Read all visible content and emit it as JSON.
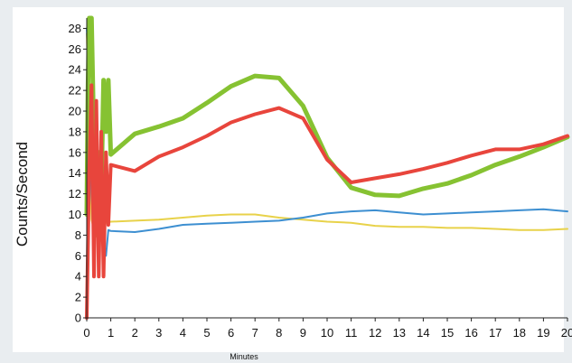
{
  "chart_data": {
    "type": "line",
    "title": "",
    "xlabel": "Minutes",
    "ylabel": "Counts/Second",
    "xlim": [
      0,
      20
    ],
    "ylim": [
      0,
      29
    ],
    "x_ticks": [
      0,
      1,
      2,
      3,
      4,
      5,
      6,
      7,
      8,
      9,
      10,
      11,
      12,
      13,
      14,
      15,
      16,
      17,
      18,
      19,
      20
    ],
    "y_ticks": [
      0,
      2,
      4,
      6,
      8,
      10,
      12,
      14,
      16,
      18,
      20,
      22,
      24,
      26,
      28
    ],
    "grid": false,
    "legend": "none",
    "series": [
      {
        "color": "#e8d24a",
        "points": [
          [
            0,
            27.5
          ],
          [
            0.1,
            20
          ],
          [
            0.2,
            9.5
          ],
          [
            0.3,
            8.5
          ],
          [
            0.5,
            9.0
          ],
          [
            1,
            9.3
          ],
          [
            2,
            9.4
          ],
          [
            3,
            9.5
          ],
          [
            4,
            9.7
          ],
          [
            5,
            9.9
          ],
          [
            6,
            10.0
          ],
          [
            7,
            10.0
          ],
          [
            8,
            9.7
          ],
          [
            9,
            9.5
          ],
          [
            10,
            9.3
          ],
          [
            11,
            9.2
          ],
          [
            12,
            8.9
          ],
          [
            13,
            8.8
          ],
          [
            14,
            8.8
          ],
          [
            15,
            8.7
          ],
          [
            16,
            8.7
          ],
          [
            17,
            8.6
          ],
          [
            18,
            8.5
          ],
          [
            19,
            8.5
          ],
          [
            20,
            8.6
          ]
        ]
      },
      {
        "color": "#3d8fd1",
        "points": [
          [
            0,
            28
          ],
          [
            0.08,
            24
          ],
          [
            0.15,
            16
          ],
          [
            0.25,
            9
          ],
          [
            0.4,
            8.5
          ],
          [
            0.6,
            8.4
          ],
          [
            0.8,
            6.0
          ],
          [
            0.9,
            8.5
          ],
          [
            1,
            8.4
          ],
          [
            2,
            8.3
          ],
          [
            3,
            8.6
          ],
          [
            4,
            9.0
          ],
          [
            5,
            9.1
          ],
          [
            6,
            9.2
          ],
          [
            7,
            9.3
          ],
          [
            8,
            9.4
          ],
          [
            9,
            9.7
          ],
          [
            10,
            10.1
          ],
          [
            11,
            10.3
          ],
          [
            12,
            10.4
          ],
          [
            13,
            10.2
          ],
          [
            14,
            10.0
          ],
          [
            15,
            10.1
          ],
          [
            16,
            10.2
          ],
          [
            17,
            10.3
          ],
          [
            18,
            10.4
          ],
          [
            19,
            10.5
          ],
          [
            20,
            10.3
          ]
        ]
      },
      {
        "color": "#86c232",
        "points": [
          [
            0,
            10
          ],
          [
            0.05,
            22
          ],
          [
            0.1,
            29
          ],
          [
            0.2,
            29
          ],
          [
            0.3,
            17
          ],
          [
            0.4,
            8
          ],
          [
            0.5,
            16
          ],
          [
            0.6,
            12
          ],
          [
            0.7,
            23
          ],
          [
            0.8,
            18
          ],
          [
            0.9,
            23
          ],
          [
            1,
            15.8
          ],
          [
            2,
            17.8
          ],
          [
            3,
            18.5
          ],
          [
            4,
            19.3
          ],
          [
            5,
            20.8
          ],
          [
            6,
            22.4
          ],
          [
            7,
            23.4
          ],
          [
            8,
            23.2
          ],
          [
            9,
            20.5
          ],
          [
            10,
            15.5
          ],
          [
            11,
            12.6
          ],
          [
            12,
            11.9
          ],
          [
            13,
            11.8
          ],
          [
            14,
            12.5
          ],
          [
            15,
            13.0
          ],
          [
            16,
            13.8
          ],
          [
            17,
            14.8
          ],
          [
            18,
            15.6
          ],
          [
            19,
            16.5
          ],
          [
            20,
            17.5
          ]
        ]
      },
      {
        "color": "#e8453c",
        "points": [
          [
            0,
            0
          ],
          [
            0.1,
            14
          ],
          [
            0.2,
            22.5
          ],
          [
            0.3,
            4
          ],
          [
            0.4,
            21
          ],
          [
            0.5,
            4
          ],
          [
            0.6,
            18
          ],
          [
            0.7,
            4
          ],
          [
            0.8,
            16
          ],
          [
            0.9,
            9
          ],
          [
            1,
            14.8
          ],
          [
            2,
            14.2
          ],
          [
            3,
            15.6
          ],
          [
            4,
            16.5
          ],
          [
            5,
            17.6
          ],
          [
            6,
            18.9
          ],
          [
            7,
            19.7
          ],
          [
            8,
            20.3
          ],
          [
            9,
            19.3
          ],
          [
            10,
            15.3
          ],
          [
            11,
            13.1
          ],
          [
            12,
            13.5
          ],
          [
            13,
            13.9
          ],
          [
            14,
            14.4
          ],
          [
            15,
            15.0
          ],
          [
            16,
            15.7
          ],
          [
            17,
            16.3
          ],
          [
            18,
            16.3
          ],
          [
            19,
            16.8
          ],
          [
            20,
            17.6
          ]
        ]
      }
    ]
  }
}
